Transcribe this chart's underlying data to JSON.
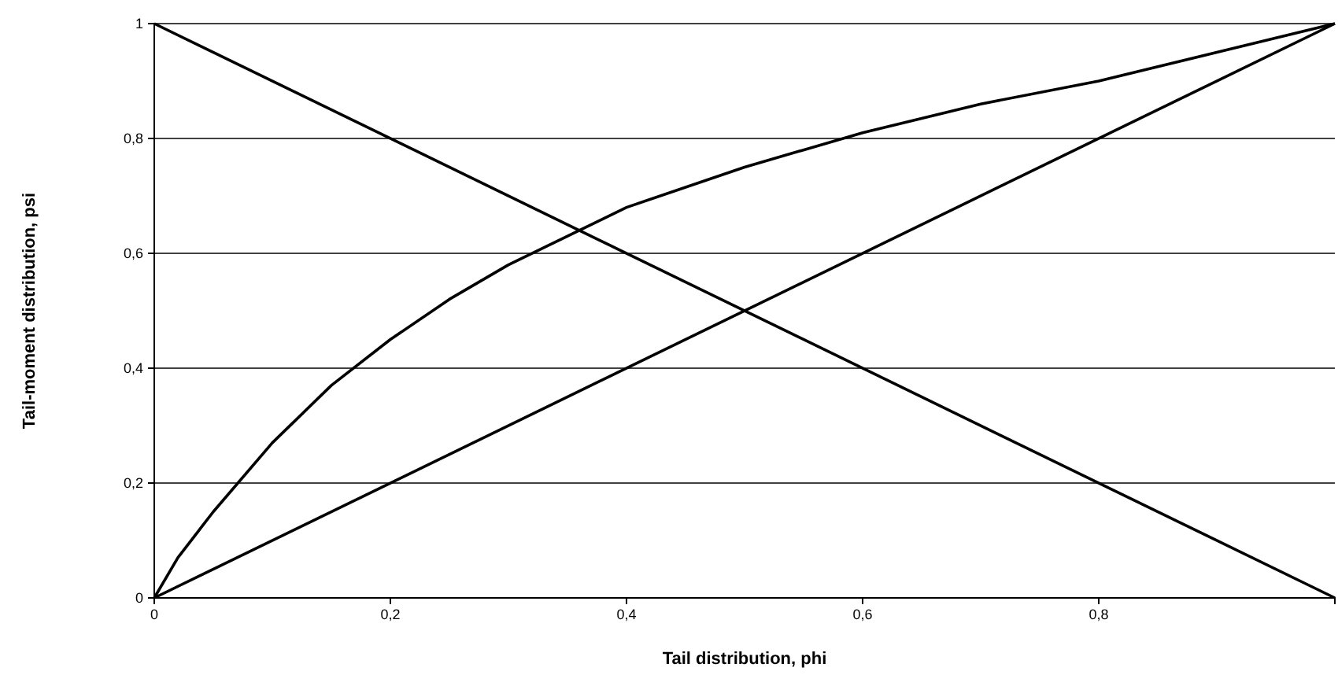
{
  "chart_data": {
    "type": "line",
    "xlabel": "Tail distribution, phi",
    "ylabel": "Tail-moment distribution, psi",
    "xlim": [
      0,
      1
    ],
    "ylim": [
      0,
      1
    ],
    "xticks": [
      0,
      {
        "value": 0.2,
        "label": "0,2"
      },
      {
        "value": 0.4,
        "label": "0,4"
      },
      {
        "value": 0.6,
        "label": "0,6"
      },
      {
        "value": 0.8,
        "label": "0,8"
      }
    ],
    "yticks": [
      0,
      {
        "value": 0.2,
        "label": "0,2"
      },
      {
        "value": 0.4,
        "label": "0,4"
      },
      {
        "value": 0.6,
        "label": "0,6"
      },
      {
        "value": 0.8,
        "label": "0,8"
      },
      1
    ],
    "grid": "y",
    "marker": "none",
    "line_style": "solid",
    "series": [
      {
        "color": "#000000",
        "x": [
          0,
          1
        ],
        "values": [
          1,
          0
        ]
      },
      {
        "color": "#000000",
        "x": [
          0,
          1
        ],
        "values": [
          0,
          1
        ]
      },
      {
        "color": "#000000",
        "x": [
          0,
          0.02,
          0.05,
          0.1,
          0.15,
          0.2,
          0.25,
          0.3,
          0.36,
          0.4,
          0.5,
          0.6,
          0.7,
          0.8,
          0.9,
          1
        ],
        "values": [
          0,
          0.07,
          0.15,
          0.27,
          0.37,
          0.45,
          0.52,
          0.58,
          0.64,
          0.68,
          0.75,
          0.81,
          0.86,
          0.9,
          0.95,
          1
        ]
      }
    ]
  }
}
